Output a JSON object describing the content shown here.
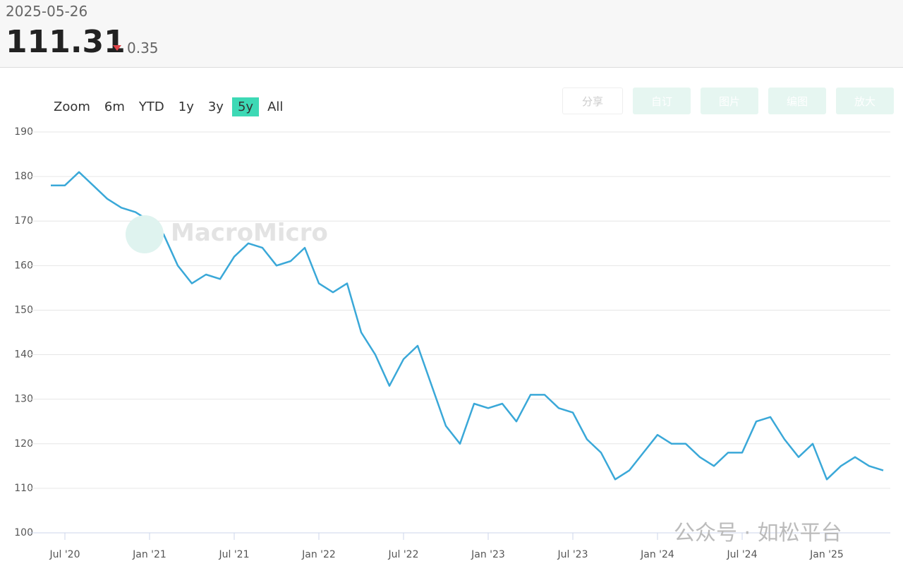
{
  "header": {
    "date": "2025-05-26",
    "value": "111.31",
    "change": "0.35"
  },
  "toolbar": {
    "zoom_label": "Zoom",
    "ranges": [
      "6m",
      "YTD",
      "1y",
      "3y",
      "5y",
      "All"
    ],
    "active_range": "5y",
    "buttons": [
      "分享",
      "自订",
      "图片",
      "编图",
      "放大"
    ]
  },
  "watermark": "MacroMicro",
  "credit": "公众号 · 如松平台",
  "chart_data": {
    "type": "line",
    "color": "#3aa8d8",
    "grid": true,
    "x": [
      "2020-06",
      "2020-07",
      "2020-08",
      "2020-09",
      "2020-10",
      "2020-11",
      "2020-12",
      "2021-01",
      "2021-02",
      "2021-03",
      "2021-04",
      "2021-05",
      "2021-06",
      "2021-07",
      "2021-08",
      "2021-09",
      "2021-10",
      "2021-11",
      "2021-12",
      "2022-01",
      "2022-02",
      "2022-03",
      "2022-04",
      "2022-05",
      "2022-06",
      "2022-07",
      "2022-08",
      "2022-09",
      "2022-10",
      "2022-11",
      "2022-12",
      "2023-01",
      "2023-02",
      "2023-03",
      "2023-04",
      "2023-05",
      "2023-06",
      "2023-07",
      "2023-08",
      "2023-09",
      "2023-10",
      "2023-11",
      "2023-12",
      "2024-01",
      "2024-02",
      "2024-03",
      "2024-04",
      "2024-05",
      "2024-06",
      "2024-07",
      "2024-08",
      "2024-09",
      "2024-10",
      "2024-11",
      "2024-12",
      "2025-01",
      "2025-02",
      "2025-03",
      "2025-04",
      "2025-05"
    ],
    "values": [
      178,
      178,
      181,
      178,
      175,
      173,
      172,
      170,
      167,
      160,
      156,
      158,
      157,
      162,
      165,
      164,
      160,
      161,
      164,
      156,
      154,
      156,
      145,
      140,
      133,
      139,
      142,
      133,
      124,
      120,
      129,
      128,
      129,
      125,
      131,
      131,
      128,
      127,
      121,
      118,
      112,
      114,
      118,
      122,
      120,
      120,
      117,
      115,
      118,
      118,
      125,
      126,
      121,
      117,
      120,
      112,
      115,
      117,
      115,
      114
    ],
    "xlim": [
      "2020-06",
      "2025-05"
    ],
    "xticks": [
      {
        "value": "2020-07",
        "label": "Jul '20"
      },
      {
        "value": "2021-01",
        "label": "Jan '21"
      },
      {
        "value": "2021-07",
        "label": "Jul '21"
      },
      {
        "value": "2022-01",
        "label": "Jan '22"
      },
      {
        "value": "2022-07",
        "label": "Jul '22"
      },
      {
        "value": "2023-01",
        "label": "Jan '23"
      },
      {
        "value": "2023-07",
        "label": "Jul '23"
      },
      {
        "value": "2024-01",
        "label": "Jan '24"
      },
      {
        "value": "2024-07",
        "label": "Jul '24"
      },
      {
        "value": "2025-01",
        "label": "Jan '25"
      }
    ],
    "ylim": [
      100,
      190
    ],
    "yticks": [
      100,
      110,
      120,
      130,
      140,
      150,
      160,
      170,
      180,
      190
    ]
  }
}
